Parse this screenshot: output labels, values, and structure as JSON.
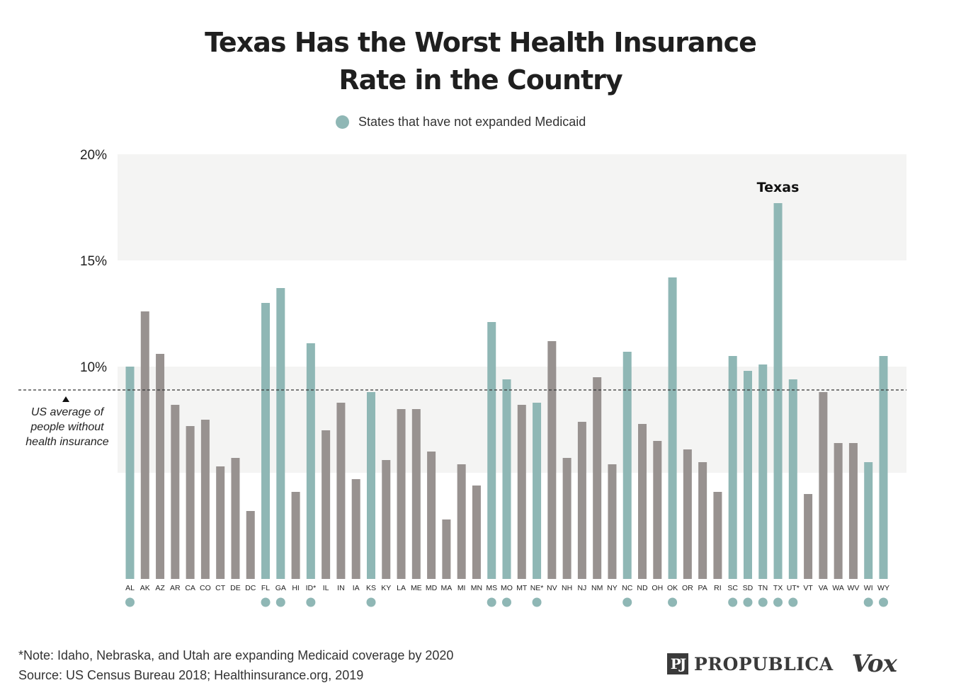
{
  "title_line1": "Texas Has the Worst Health Insurance",
  "title_line2": "Rate in the Country",
  "legend_label": "States that have not expanded Medicaid",
  "colors": {
    "expanded": "#989290",
    "not_expanded": "#8fb7b5",
    "band": "#f4f4f3"
  },
  "annotation": {
    "line1": "US average of",
    "line2": "people without",
    "line3": "health insurance"
  },
  "highlight_label": "Texas",
  "footnote_note": "*Note: Idaho, Nebraska, and Utah are expanding Medicaid coverage by 2020",
  "footnote_source": "Source: US Census Bureau 2018; Healthinsurance.org, 2019",
  "logos": {
    "propublica_mark": "PJ",
    "propublica": "PROPUBLICA",
    "vox": "Vox"
  },
  "chart_data": {
    "type": "bar",
    "ylim": [
      0,
      20
    ],
    "yticks": [
      "10%",
      "15%",
      "20%"
    ],
    "ytick_values": [
      10,
      15,
      20
    ],
    "bands": [
      [
        5,
        10
      ],
      [
        15,
        20
      ]
    ],
    "us_average": 8.9,
    "categories": [
      "AL",
      "AK",
      "AZ",
      "AR",
      "CA",
      "CO",
      "CT",
      "DE",
      "DC",
      "FL",
      "GA",
      "HI",
      "ID*",
      "IL",
      "IN",
      "IA",
      "KS",
      "KY",
      "LA",
      "ME",
      "MD",
      "MA",
      "MI",
      "MN",
      "MS",
      "MO",
      "MT",
      "NE*",
      "NV",
      "NH",
      "NJ",
      "NM",
      "NY",
      "NC",
      "ND",
      "OH",
      "OK",
      "OR",
      "PA",
      "RI",
      "SC",
      "SD",
      "TN",
      "TX",
      "UT*",
      "VT",
      "VA",
      "WA",
      "WV",
      "WI",
      "WY"
    ],
    "values": [
      10.0,
      12.6,
      10.6,
      8.2,
      7.2,
      7.5,
      5.3,
      5.7,
      3.2,
      13.0,
      13.7,
      4.1,
      11.1,
      7.0,
      8.3,
      4.7,
      8.8,
      5.6,
      8.0,
      8.0,
      6.0,
      2.8,
      5.4,
      4.4,
      12.1,
      9.4,
      8.2,
      8.3,
      11.2,
      5.7,
      7.4,
      9.5,
      5.4,
      10.7,
      7.3,
      6.5,
      14.2,
      6.1,
      5.5,
      4.1,
      10.5,
      9.8,
      10.1,
      17.7,
      9.4,
      4.0,
      8.8,
      6.4,
      6.4,
      5.5,
      10.5
    ],
    "not_expanded": [
      true,
      false,
      false,
      false,
      false,
      false,
      false,
      false,
      false,
      true,
      true,
      false,
      true,
      false,
      false,
      false,
      true,
      false,
      false,
      false,
      false,
      false,
      false,
      false,
      true,
      true,
      false,
      true,
      false,
      false,
      false,
      false,
      false,
      true,
      false,
      false,
      true,
      false,
      false,
      false,
      true,
      true,
      true,
      true,
      true,
      false,
      false,
      false,
      false,
      true,
      true
    ]
  }
}
